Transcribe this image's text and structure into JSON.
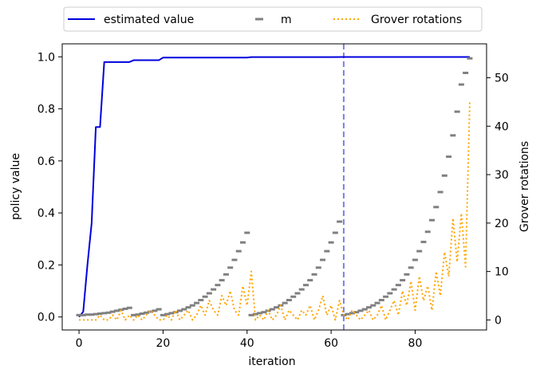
{
  "chart_data": {
    "type": "line",
    "xlabel": "iteration",
    "ylabel_left": "policy value",
    "ylabel_right": "Grover rotations",
    "xlim": [
      -4,
      97
    ],
    "ylim_left": [
      -0.05,
      1.05
    ],
    "ylim_right": [
      -2.07,
      57.0
    ],
    "x_ticks": [
      0,
      20,
      40,
      60,
      80
    ],
    "y_ticks_left": [
      0.0,
      0.2,
      0.4,
      0.6,
      0.8,
      1.0
    ],
    "y_ticks_right": [
      0,
      10,
      20,
      30,
      40,
      50
    ],
    "x_tick_labels": [
      "0",
      "20",
      "40",
      "60",
      "80"
    ],
    "y_tick_labels_left": [
      "0.0",
      "0.2",
      "0.4",
      "0.6",
      "0.8",
      "1.0"
    ],
    "y_tick_labels_right": [
      "0",
      "10",
      "20",
      "30",
      "40",
      "50"
    ],
    "legend": {
      "placement": "top-center",
      "entries": [
        "estimated value",
        "m",
        "Grover rotations"
      ]
    },
    "vline": {
      "x": 63,
      "color": "#7f7fe8",
      "style": "dashed"
    },
    "series": [
      {
        "name": "estimated value",
        "axis": "left",
        "color": "#0000dd",
        "style": "solid",
        "x": [
          0,
          1,
          2,
          3,
          4,
          5,
          6,
          7,
          8,
          9,
          10,
          11,
          12,
          13,
          14,
          15,
          16,
          17,
          18,
          19,
          20,
          25,
          30,
          35,
          40,
          41,
          45,
          50,
          55,
          60,
          63,
          70,
          80,
          90,
          93
        ],
        "y": [
          0.0,
          0.02,
          0.2,
          0.36,
          0.73,
          0.73,
          0.98,
          0.98,
          0.98,
          0.98,
          0.98,
          0.98,
          0.98,
          0.987,
          0.987,
          0.987,
          0.987,
          0.987,
          0.987,
          0.987,
          0.997,
          0.997,
          0.997,
          0.997,
          0.997,
          0.999,
          0.999,
          0.999,
          0.999,
          0.999,
          0.9995,
          0.9995,
          0.9995,
          0.9995,
          0.9995
        ]
      },
      {
        "name": "m",
        "axis": "right",
        "color": "#808080",
        "style": "markers",
        "x": [
          0,
          1,
          2,
          3,
          4,
          5,
          6,
          7,
          8,
          9,
          10,
          11,
          12,
          13,
          14,
          15,
          16,
          17,
          18,
          19,
          20,
          21,
          22,
          23,
          24,
          25,
          26,
          27,
          28,
          29,
          30,
          31,
          32,
          33,
          34,
          35,
          36,
          37,
          38,
          39,
          40,
          41,
          42,
          43,
          44,
          45,
          46,
          47,
          48,
          49,
          50,
          51,
          52,
          53,
          54,
          55,
          56,
          57,
          58,
          59,
          60,
          61,
          62,
          63,
          64,
          65,
          66,
          67,
          68,
          69,
          70,
          71,
          72,
          73,
          74,
          75,
          76,
          77,
          78,
          79,
          80,
          81,
          82,
          83,
          84,
          85,
          86,
          87,
          88,
          89,
          90,
          91,
          92,
          93
        ],
        "y": [
          1.0,
          1.0,
          1.1,
          1.1,
          1.2,
          1.3,
          1.4,
          1.5,
          1.7,
          1.9,
          2.1,
          2.3,
          2.5,
          1.0,
          1.1,
          1.3,
          1.5,
          1.7,
          1.9,
          2.2,
          1.0,
          1.2,
          1.4,
          1.6,
          1.9,
          2.2,
          2.6,
          3.0,
          3.5,
          4.1,
          4.8,
          5.5,
          6.3,
          7.2,
          8.2,
          9.4,
          10.8,
          12.4,
          14.2,
          16.0,
          18.0,
          1.0,
          1.2,
          1.4,
          1.6,
          1.9,
          2.2,
          2.6,
          3.0,
          3.5,
          4.1,
          4.8,
          5.5,
          6.3,
          7.2,
          8.2,
          9.4,
          10.8,
          12.4,
          14.2,
          16.0,
          18.0,
          20.3,
          1.0,
          1.2,
          1.4,
          1.6,
          1.9,
          2.2,
          2.6,
          3.0,
          3.5,
          4.1,
          4.8,
          5.5,
          6.3,
          7.2,
          8.2,
          9.4,
          10.8,
          12.4,
          14.2,
          16.1,
          18.2,
          20.6,
          23.3,
          26.4,
          29.8,
          33.7,
          38.1,
          43.0,
          48.6,
          51.0,
          54.0
        ]
      },
      {
        "name": "Grover rotations",
        "axis": "right",
        "color": "#ffa500",
        "style": "dotted",
        "x": [
          0,
          1,
          2,
          3,
          4,
          5,
          6,
          7,
          8,
          9,
          10,
          11,
          12,
          13,
          14,
          15,
          16,
          17,
          18,
          19,
          20,
          21,
          22,
          23,
          24,
          25,
          26,
          27,
          28,
          29,
          30,
          31,
          32,
          33,
          34,
          35,
          36,
          37,
          38,
          39,
          40,
          41,
          42,
          43,
          44,
          45,
          46,
          47,
          48,
          49,
          50,
          51,
          52,
          53,
          54,
          55,
          56,
          57,
          58,
          59,
          60,
          61,
          62,
          63,
          64,
          65,
          66,
          67,
          68,
          69,
          70,
          71,
          72,
          73,
          74,
          75,
          76,
          77,
          78,
          79,
          80,
          81,
          82,
          83,
          84,
          85,
          86,
          87,
          88,
          89,
          90,
          91,
          92,
          93
        ],
        "y": [
          0,
          0,
          0,
          0,
          0,
          1,
          0,
          0,
          1,
          0,
          2,
          0,
          1,
          0,
          1,
          0,
          1,
          2,
          1,
          0,
          0,
          1,
          0,
          2,
          0,
          1,
          2,
          0,
          1,
          3,
          1,
          4,
          2,
          1,
          5,
          3,
          6,
          2,
          1,
          7,
          3,
          10,
          0,
          1,
          0,
          2,
          0,
          1,
          3,
          0,
          2,
          1,
          0,
          2,
          1,
          3,
          0,
          2,
          5,
          1,
          3,
          0,
          4,
          1,
          0,
          2,
          1,
          0,
          1,
          2,
          0,
          1,
          3,
          0,
          2,
          4,
          1,
          6,
          3,
          8,
          2,
          9,
          4,
          7,
          2,
          10,
          5,
          14,
          9,
          21,
          12,
          22,
          11,
          45
        ]
      }
    ]
  }
}
